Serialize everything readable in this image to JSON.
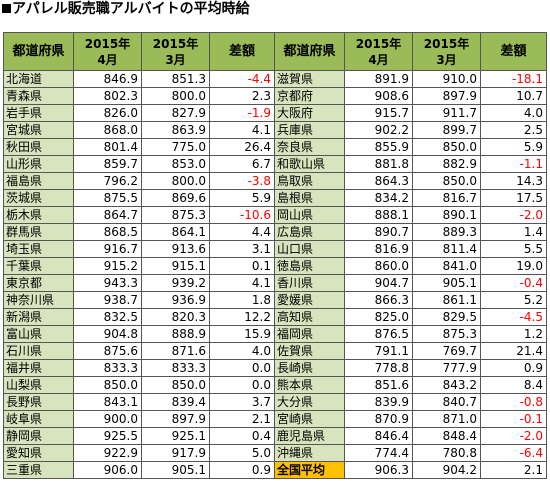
{
  "title": "アパレル販売職アルバイトの平均時給",
  "title_marker": "square",
  "columns": [
    "都道府県",
    "2015年\n4月",
    "2015年\n3月",
    "差額"
  ],
  "highlight_color": "#ffc000",
  "header_color": "#9bbb59",
  "pref_color": "#d7e4bd",
  "negative_color": "#ff0000",
  "left": [
    [
      "北海道",
      "846.9",
      "851.3",
      "-4.4"
    ],
    [
      "青森県",
      "802.3",
      "800.0",
      "2.3"
    ],
    [
      "岩手県",
      "826.0",
      "827.9",
      "-1.9"
    ],
    [
      "宮城県",
      "868.0",
      "863.9",
      "4.1"
    ],
    [
      "秋田県",
      "801.4",
      "775.0",
      "26.4"
    ],
    [
      "山形県",
      "859.7",
      "853.0",
      "6.7"
    ],
    [
      "福島県",
      "796.2",
      "800.0",
      "-3.8"
    ],
    [
      "茨城県",
      "875.5",
      "869.6",
      "5.9"
    ],
    [
      "栃木県",
      "864.7",
      "875.3",
      "-10.6"
    ],
    [
      "群馬県",
      "868.5",
      "864.1",
      "4.4"
    ],
    [
      "埼玉県",
      "916.7",
      "913.6",
      "3.1"
    ],
    [
      "千葉県",
      "915.2",
      "915.1",
      "0.1"
    ],
    [
      "東京都",
      "943.3",
      "939.2",
      "4.1"
    ],
    [
      "神奈川県",
      "938.7",
      "936.9",
      "1.8"
    ],
    [
      "新潟県",
      "832.5",
      "820.3",
      "12.2"
    ],
    [
      "富山県",
      "904.8",
      "888.9",
      "15.9"
    ],
    [
      "石川県",
      "875.6",
      "871.6",
      "4.0"
    ],
    [
      "福井県",
      "833.3",
      "833.3",
      "0.0"
    ],
    [
      "山梨県",
      "850.0",
      "850.0",
      "0.0"
    ],
    [
      "長野県",
      "843.1",
      "839.4",
      "3.7"
    ],
    [
      "岐阜県",
      "900.0",
      "897.9",
      "2.1"
    ],
    [
      "静岡県",
      "925.5",
      "925.1",
      "0.4"
    ],
    [
      "愛知県",
      "922.9",
      "917.9",
      "5.0"
    ],
    [
      "三重県",
      "906.0",
      "905.1",
      "0.9"
    ]
  ],
  "right": [
    [
      "滋賀県",
      "891.9",
      "910.0",
      "-18.1"
    ],
    [
      "京都府",
      "908.6",
      "897.9",
      "10.7"
    ],
    [
      "大阪府",
      "915.7",
      "911.7",
      "4.0"
    ],
    [
      "兵庫県",
      "902.2",
      "899.7",
      "2.5"
    ],
    [
      "奈良県",
      "855.9",
      "850.0",
      "5.9"
    ],
    [
      "和歌山県",
      "881.8",
      "882.9",
      "-1.1"
    ],
    [
      "鳥取県",
      "864.3",
      "850.0",
      "14.3"
    ],
    [
      "島根県",
      "834.2",
      "816.7",
      "17.5"
    ],
    [
      "岡山県",
      "888.1",
      "890.1",
      "-2.0"
    ],
    [
      "広島県",
      "890.7",
      "889.3",
      "1.4"
    ],
    [
      "山口県",
      "816.9",
      "811.4",
      "5.5"
    ],
    [
      "徳島県",
      "860.0",
      "841.0",
      "19.0"
    ],
    [
      "香川県",
      "904.7",
      "905.1",
      "-0.4"
    ],
    [
      "愛媛県",
      "866.3",
      "861.1",
      "5.2"
    ],
    [
      "高知県",
      "825.0",
      "829.5",
      "-4.5"
    ],
    [
      "福岡県",
      "876.5",
      "875.3",
      "1.2"
    ],
    [
      "佐賀県",
      "791.1",
      "769.7",
      "21.4"
    ],
    [
      "長崎県",
      "778.8",
      "777.9",
      "0.9"
    ],
    [
      "熊本県",
      "851.6",
      "843.2",
      "8.4"
    ],
    [
      "大分県",
      "839.9",
      "840.7",
      "-0.8"
    ],
    [
      "宮崎県",
      "870.9",
      "871.0",
      "-0.1"
    ],
    [
      "鹿児島県",
      "846.4",
      "848.4",
      "-2.0"
    ],
    [
      "沖縄県",
      "774.4",
      "780.8",
      "-6.4"
    ],
    [
      "全国平均",
      "906.3",
      "904.2",
      "2.1"
    ]
  ],
  "highlight_row_label": "全国平均"
}
